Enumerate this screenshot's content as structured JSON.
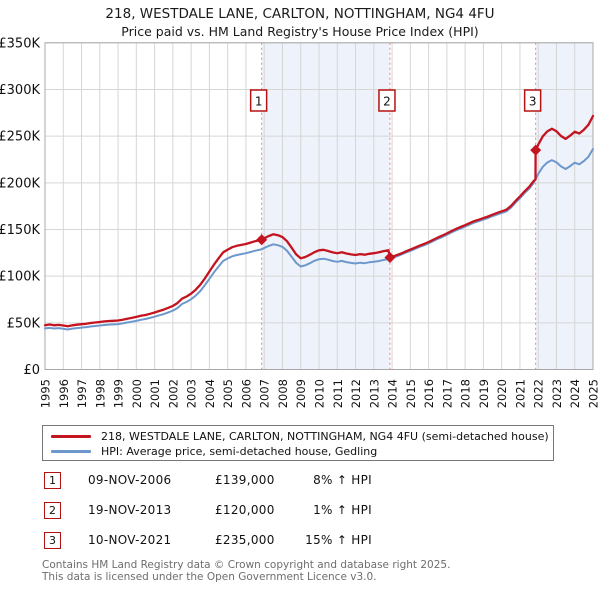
{
  "title": "218, WESTDALE LANE, CARLTON, NOTTINGHAM, NG4 4FU",
  "subtitle": "Price paid vs. HM Land Registry's House Price Index (HPI)",
  "chart_data": {
    "type": "line",
    "x_range": [
      1995,
      2025
    ],
    "y_range_gbp": [
      0,
      350000
    ],
    "values_unit": "GBP_thousands",
    "grid": true,
    "colors": {
      "property_line": "#c41420",
      "hpi_line": "#6d98cc",
      "shade": "#eef2fa",
      "grid": "#d6d6d6",
      "border": "#a8a8a8",
      "sale_dashed_line": "#f28080",
      "marker_box_border": "#b51313",
      "axis_text": "#111111"
    },
    "y_ticks": {
      "values": [
        0,
        50,
        100,
        150,
        200,
        250,
        300,
        350
      ],
      "labels": [
        "£0",
        "£50K",
        "£100K",
        "£150K",
        "£200K",
        "£250K",
        "£300K",
        "£350K"
      ]
    },
    "x_tick_years": [
      1995,
      1996,
      1997,
      1998,
      1999,
      2000,
      2001,
      2002,
      2003,
      2004,
      2005,
      2006,
      2007,
      2008,
      2009,
      2010,
      2011,
      2012,
      2013,
      2014,
      2015,
      2016,
      2017,
      2018,
      2019,
      2020,
      2021,
      2022,
      2023,
      2024,
      2025
    ],
    "shaded_ranges": [
      [
        2006.86,
        2013.885
      ],
      [
        2021.86,
        2025.0
      ]
    ],
    "sales_markers": [
      {
        "n": "1",
        "x": 2006.86,
        "y": 139.0
      },
      {
        "n": "2",
        "x": 2013.885,
        "y": 120.0
      },
      {
        "n": "3",
        "x": 2021.86,
        "y": 235.0
      }
    ],
    "series": [
      {
        "name": "218, WESTDALE LANE, CARLTON, NOTTINGHAM, NG4 4FU (semi-detached house)",
        "color": "#c41420",
        "points": [
          [
            1995.0,
            47.5
          ],
          [
            1995.25,
            48.2
          ],
          [
            1995.5,
            47.4
          ],
          [
            1995.75,
            47.8
          ],
          [
            1996.0,
            47.1
          ],
          [
            1996.25,
            46.3
          ],
          [
            1996.5,
            47.3
          ],
          [
            1996.75,
            48.0
          ],
          [
            1997.0,
            48.5
          ],
          [
            1997.25,
            49.0
          ],
          [
            1997.5,
            49.8
          ],
          [
            1997.75,
            50.3
          ],
          [
            1998.0,
            50.9
          ],
          [
            1998.25,
            51.5
          ],
          [
            1998.5,
            52.0
          ],
          [
            1998.75,
            52.2
          ],
          [
            1999.0,
            52.5
          ],
          [
            1999.25,
            53.4
          ],
          [
            1999.5,
            54.4
          ],
          [
            1999.75,
            55.3
          ],
          [
            2000.0,
            56.3
          ],
          [
            2000.25,
            57.5
          ],
          [
            2000.5,
            58.4
          ],
          [
            2000.75,
            59.7
          ],
          [
            2001.0,
            61.1
          ],
          [
            2001.25,
            62.7
          ],
          [
            2001.5,
            64.2
          ],
          [
            2001.75,
            66.1
          ],
          [
            2002.0,
            68.1
          ],
          [
            2002.25,
            71.1
          ],
          [
            2002.5,
            75.8
          ],
          [
            2002.75,
            78.2
          ],
          [
            2003.0,
            81.3
          ],
          [
            2003.25,
            85.5
          ],
          [
            2003.5,
            90.8
          ],
          [
            2003.75,
            97.5
          ],
          [
            2004.0,
            105.0
          ],
          [
            2004.25,
            112.4
          ],
          [
            2004.5,
            119.0
          ],
          [
            2004.75,
            125.5
          ],
          [
            2005.0,
            128.5
          ],
          [
            2005.25,
            131.0
          ],
          [
            2005.5,
            132.5
          ],
          [
            2005.75,
            133.5
          ],
          [
            2006.0,
            134.5
          ],
          [
            2006.25,
            136.0
          ],
          [
            2006.5,
            137.5
          ],
          [
            2006.86,
            139.0
          ],
          [
            2007.0,
            140.6
          ],
          [
            2007.25,
            143.0
          ],
          [
            2007.5,
            144.8
          ],
          [
            2007.75,
            143.9
          ],
          [
            2008.0,
            141.8
          ],
          [
            2008.25,
            137.4
          ],
          [
            2008.5,
            130.5
          ],
          [
            2008.75,
            123.3
          ],
          [
            2009.0,
            119.1
          ],
          [
            2009.25,
            120.5
          ],
          [
            2009.5,
            123.0
          ],
          [
            2009.75,
            125.7
          ],
          [
            2010.0,
            127.7
          ],
          [
            2010.25,
            128.2
          ],
          [
            2010.5,
            127.0
          ],
          [
            2010.75,
            125.5
          ],
          [
            2011.0,
            124.6
          ],
          [
            2011.25,
            125.6
          ],
          [
            2011.5,
            124.3
          ],
          [
            2011.75,
            123.3
          ],
          [
            2012.0,
            122.7
          ],
          [
            2012.25,
            123.6
          ],
          [
            2012.5,
            123.0
          ],
          [
            2012.75,
            124.0
          ],
          [
            2013.0,
            124.6
          ],
          [
            2013.25,
            125.4
          ],
          [
            2013.5,
            126.6
          ],
          [
            2013.8,
            127.8
          ],
          [
            2013.885,
            120.0
          ],
          [
            2014.0,
            120.8
          ],
          [
            2014.25,
            122.4
          ],
          [
            2014.5,
            124.3
          ],
          [
            2014.75,
            126.5
          ],
          [
            2015.0,
            128.4
          ],
          [
            2015.25,
            130.5
          ],
          [
            2015.5,
            132.6
          ],
          [
            2015.75,
            134.4
          ],
          [
            2016.0,
            136.6
          ],
          [
            2016.25,
            139.0
          ],
          [
            2016.5,
            141.3
          ],
          [
            2016.75,
            143.5
          ],
          [
            2017.0,
            145.8
          ],
          [
            2017.25,
            148.3
          ],
          [
            2017.5,
            150.6
          ],
          [
            2017.75,
            152.7
          ],
          [
            2018.0,
            154.6
          ],
          [
            2018.25,
            156.8
          ],
          [
            2018.5,
            159.0
          ],
          [
            2018.75,
            160.5
          ],
          [
            2019.0,
            162.2
          ],
          [
            2019.25,
            163.9
          ],
          [
            2019.5,
            165.8
          ],
          [
            2019.75,
            167.8
          ],
          [
            2020.0,
            169.5
          ],
          [
            2020.25,
            171.1
          ],
          [
            2020.5,
            174.9
          ],
          [
            2020.75,
            180.4
          ],
          [
            2021.0,
            185.2
          ],
          [
            2021.25,
            190.8
          ],
          [
            2021.5,
            195.5
          ],
          [
            2021.75,
            201.8
          ],
          [
            2021.85,
            203.5
          ],
          [
            2021.86,
            235.0
          ],
          [
            2022.0,
            240.8
          ],
          [
            2022.25,
            249.8
          ],
          [
            2022.5,
            255.1
          ],
          [
            2022.75,
            258.0
          ],
          [
            2023.0,
            255.2
          ],
          [
            2023.25,
            250.2
          ],
          [
            2023.5,
            247.0
          ],
          [
            2023.75,
            250.6
          ],
          [
            2024.0,
            254.8
          ],
          [
            2024.25,
            252.8
          ],
          [
            2024.5,
            256.9
          ],
          [
            2024.75,
            262.1
          ],
          [
            2025.0,
            271.6
          ]
        ]
      },
      {
        "name": "HPI: Average price, semi-detached house, Gedling",
        "color": "#6d98cc",
        "points": [
          [
            1995.0,
            44.0
          ],
          [
            1995.25,
            44.6
          ],
          [
            1995.5,
            43.9
          ],
          [
            1995.75,
            44.3
          ],
          [
            1996.0,
            43.6
          ],
          [
            1996.25,
            42.9
          ],
          [
            1996.5,
            43.8
          ],
          [
            1996.75,
            44.4
          ],
          [
            1997.0,
            44.9
          ],
          [
            1997.25,
            45.4
          ],
          [
            1997.5,
            46.1
          ],
          [
            1997.75,
            46.6
          ],
          [
            1998.0,
            47.1
          ],
          [
            1998.25,
            47.7
          ],
          [
            1998.5,
            48.1
          ],
          [
            1998.75,
            48.3
          ],
          [
            1999.0,
            48.6
          ],
          [
            1999.25,
            49.4
          ],
          [
            1999.5,
            50.4
          ],
          [
            1999.75,
            51.2
          ],
          [
            2000.0,
            52.1
          ],
          [
            2000.25,
            53.2
          ],
          [
            2000.5,
            54.1
          ],
          [
            2000.75,
            55.3
          ],
          [
            2001.0,
            56.6
          ],
          [
            2001.25,
            58.1
          ],
          [
            2001.5,
            59.4
          ],
          [
            2001.75,
            61.2
          ],
          [
            2002.0,
            63.1
          ],
          [
            2002.25,
            65.8
          ],
          [
            2002.5,
            70.2
          ],
          [
            2002.75,
            72.4
          ],
          [
            2003.0,
            75.3
          ],
          [
            2003.25,
            79.2
          ],
          [
            2003.5,
            84.1
          ],
          [
            2003.75,
            90.3
          ],
          [
            2004.0,
            97.2
          ],
          [
            2004.25,
            104.1
          ],
          [
            2004.5,
            110.2
          ],
          [
            2004.75,
            116.2
          ],
          [
            2005.0,
            119.0
          ],
          [
            2005.25,
            121.3
          ],
          [
            2005.5,
            122.7
          ],
          [
            2005.75,
            123.6
          ],
          [
            2006.0,
            124.6
          ],
          [
            2006.25,
            125.9
          ],
          [
            2006.5,
            127.3
          ],
          [
            2006.86,
            128.7
          ],
          [
            2007.0,
            130.2
          ],
          [
            2007.25,
            132.4
          ],
          [
            2007.5,
            134.1
          ],
          [
            2007.75,
            133.2
          ],
          [
            2008.0,
            131.3
          ],
          [
            2008.25,
            127.2
          ],
          [
            2008.5,
            120.8
          ],
          [
            2008.75,
            114.2
          ],
          [
            2009.0,
            110.3
          ],
          [
            2009.25,
            111.6
          ],
          [
            2009.5,
            113.9
          ],
          [
            2009.75,
            116.4
          ],
          [
            2010.0,
            118.2
          ],
          [
            2010.25,
            118.7
          ],
          [
            2010.5,
            117.6
          ],
          [
            2010.75,
            116.2
          ],
          [
            2011.0,
            115.4
          ],
          [
            2011.25,
            116.3
          ],
          [
            2011.5,
            115.1
          ],
          [
            2011.75,
            114.2
          ],
          [
            2012.0,
            113.6
          ],
          [
            2012.25,
            114.4
          ],
          [
            2012.5,
            113.9
          ],
          [
            2012.75,
            114.8
          ],
          [
            2013.0,
            115.4
          ],
          [
            2013.25,
            116.1
          ],
          [
            2013.5,
            117.2
          ],
          [
            2013.75,
            118.3
          ],
          [
            2013.885,
            118.8
          ],
          [
            2014.0,
            119.6
          ],
          [
            2014.25,
            121.2
          ],
          [
            2014.5,
            123.1
          ],
          [
            2014.75,
            125.2
          ],
          [
            2015.0,
            127.1
          ],
          [
            2015.25,
            129.2
          ],
          [
            2015.5,
            131.3
          ],
          [
            2015.75,
            133.1
          ],
          [
            2016.0,
            135.2
          ],
          [
            2016.25,
            137.6
          ],
          [
            2016.5,
            139.9
          ],
          [
            2016.75,
            142.1
          ],
          [
            2017.0,
            144.4
          ],
          [
            2017.25,
            146.8
          ],
          [
            2017.5,
            149.1
          ],
          [
            2017.75,
            151.2
          ],
          [
            2018.0,
            153.1
          ],
          [
            2018.25,
            155.2
          ],
          [
            2018.5,
            157.4
          ],
          [
            2018.75,
            158.9
          ],
          [
            2019.0,
            160.6
          ],
          [
            2019.25,
            162.3
          ],
          [
            2019.5,
            164.2
          ],
          [
            2019.75,
            166.1
          ],
          [
            2020.0,
            167.8
          ],
          [
            2020.25,
            169.4
          ],
          [
            2020.5,
            173.2
          ],
          [
            2020.75,
            178.6
          ],
          [
            2021.0,
            183.4
          ],
          [
            2021.25,
            188.9
          ],
          [
            2021.5,
            193.6
          ],
          [
            2021.75,
            199.8
          ],
          [
            2021.86,
            204.3
          ],
          [
            2022.0,
            209.4
          ],
          [
            2022.25,
            217.2
          ],
          [
            2022.5,
            221.8
          ],
          [
            2022.75,
            224.3
          ],
          [
            2023.0,
            221.9
          ],
          [
            2023.25,
            217.6
          ],
          [
            2023.5,
            214.8
          ],
          [
            2023.75,
            217.9
          ],
          [
            2024.0,
            221.6
          ],
          [
            2024.25,
            219.8
          ],
          [
            2024.5,
            223.4
          ],
          [
            2024.75,
            227.9
          ],
          [
            2025.0,
            236.2
          ]
        ]
      }
    ]
  },
  "legend": {
    "items": [
      {
        "label": "218, WESTDALE LANE, CARLTON, NOTTINGHAM, NG4 4FU (semi-detached house)"
      },
      {
        "label": "HPI: Average price, semi-detached house, Gedling"
      }
    ]
  },
  "transactions": [
    {
      "num": "1",
      "date": "09-NOV-2006",
      "price": "£139,000",
      "hpi_delta": "8% ↑ HPI"
    },
    {
      "num": "2",
      "date": "19-NOV-2013",
      "price": "£120,000",
      "hpi_delta": "1% ↑ HPI"
    },
    {
      "num": "3",
      "date": "10-NOV-2021",
      "price": "£235,000",
      "hpi_delta": "15% ↑ HPI"
    }
  ],
  "footer": {
    "line1": "Contains HM Land Registry data © Crown copyright and database right 2025.",
    "line2": "This data is licensed under the Open Government Licence v3.0."
  }
}
